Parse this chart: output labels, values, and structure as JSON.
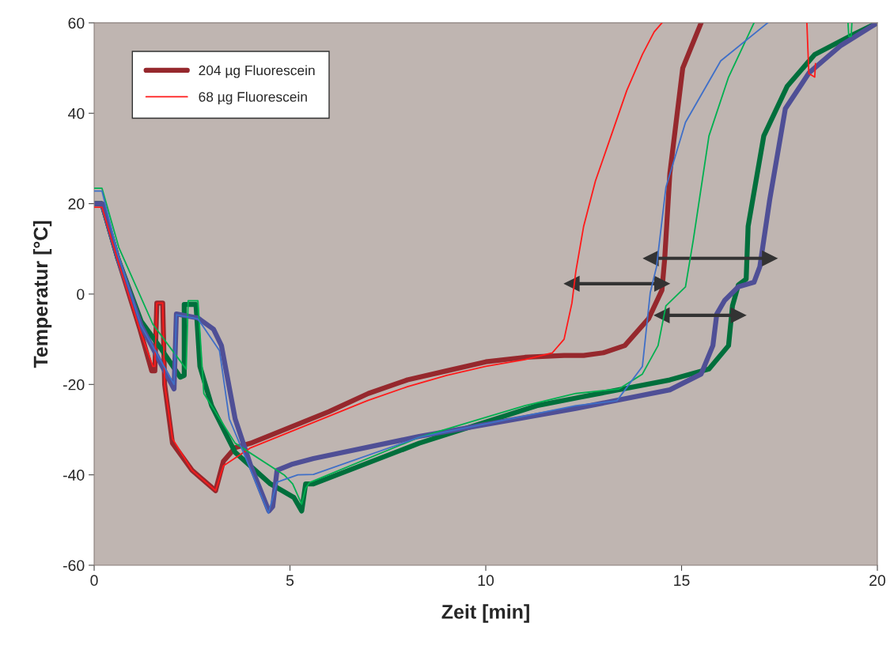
{
  "chart_data": {
    "type": "line",
    "xlabel": "Zeit [min]",
    "ylabel": "Temperatur [°C]",
    "xlim": [
      0,
      20
    ],
    "xticks": [
      0,
      5,
      10,
      15,
      20
    ],
    "ylim": [
      -60,
      60
    ],
    "yticks": [
      -60,
      -40,
      -20,
      0,
      20,
      40,
      60
    ],
    "grid": false,
    "legend": "top left",
    "marker": "none",
    "line_style": "solid",
    "series": [
      {
        "name": "204 µg Fluorescein",
        "color": "#96282d",
        "x": [
          0,
          0.2,
          0.6,
          1.17,
          1.47,
          1.55,
          1.6,
          1.75,
          1.8,
          2.0,
          2.5,
          3.1,
          3.3,
          3.6,
          4,
          5,
          6,
          7,
          8,
          9,
          10,
          11,
          12,
          12.5,
          13,
          13.55,
          14.16,
          14.5,
          14.57,
          14.7,
          15.03,
          15.5
        ],
        "values": [
          20,
          20,
          8,
          -7.8,
          -17,
          -17,
          -2,
          -2,
          -20,
          -33,
          -39,
          -43.5,
          -37,
          -34,
          -33,
          -29.5,
          -26,
          -22,
          -19,
          -17,
          -15,
          -14,
          -13.6,
          -13.6,
          -13,
          -11.4,
          -5.4,
          0.9,
          7.9,
          26.6,
          50,
          60
        ]
      },
      {
        "name": "68 µg Fluorescein",
        "color": "#ff1a1a",
        "x": [
          0,
          0.2,
          0.6,
          1.17,
          1.5,
          1.55,
          1.6,
          1.75,
          1.8,
          2.0,
          2.5,
          3.1,
          3.3,
          4,
          5,
          6,
          7,
          8,
          9,
          10,
          11,
          11.7,
          12.0,
          12.2,
          12.3,
          12.5,
          12.8,
          13.2,
          13.6,
          14.0,
          14.3,
          14.5,
          null,
          18.2,
          18.25,
          18.4,
          18.42
        ],
        "values": [
          19.2,
          19.2,
          7.5,
          -8,
          -16,
          -16,
          -2,
          -2,
          -20,
          -32,
          -39,
          -43.5,
          -38,
          -34,
          -30.5,
          -27,
          -23.5,
          -20.5,
          -18,
          -16,
          -14.5,
          -13,
          -10,
          -2,
          5,
          15,
          25,
          35,
          45,
          53,
          58,
          60,
          null,
          60,
          48.8,
          48,
          51
        ]
      },
      {
        "color": "#006f3c",
        "x": [
          0,
          0.2,
          0.6,
          1.2,
          1.7,
          2.2,
          2.3,
          2.3,
          2.6,
          2.7,
          3.0,
          3.6,
          4.5,
          5.1,
          5.3,
          5.4,
          5.6,
          8.3,
          11.3,
          12.3,
          14.7,
          15.7,
          16.2,
          16.3,
          16.45,
          16.65,
          16.7,
          17.1,
          17.7,
          18.4,
          19.4,
          20
        ],
        "values": [
          20,
          20,
          8,
          -6,
          -12,
          -18.4,
          -18,
          -2.3,
          -2.3,
          -16,
          -24.7,
          -35,
          -42,
          -45,
          -48,
          -42,
          -42,
          -33,
          -24.7,
          -23,
          -19,
          -16.6,
          -11.4,
          -2.6,
          2,
          3.3,
          15,
          35,
          46,
          53,
          57.5,
          60
        ]
      },
      {
        "color": "#00b050",
        "x": [
          0,
          0.2,
          0.63,
          1.5,
          2.35,
          2.4,
          2.65,
          2.8,
          3.6,
          4.85,
          5.07,
          5.3,
          5.4,
          5.5,
          8.3,
          11,
          12.3,
          13.4,
          14.0,
          14.4,
          14.6,
          15.1,
          15.3,
          15.7,
          16.2,
          16.85,
          null,
          19.25,
          19.27,
          19.33,
          19.35
        ],
        "values": [
          23.4,
          23.4,
          10.3,
          -6.7,
          -16.6,
          -1.5,
          -1.5,
          -22,
          -33,
          -40,
          -42,
          -46.5,
          -43,
          -41.7,
          -31.7,
          -24.7,
          -22,
          -21,
          -17.7,
          -11.4,
          -2.6,
          1.6,
          12,
          35,
          48,
          60,
          null,
          60,
          57,
          57,
          60
        ]
      },
      {
        "color": "#4f4f96",
        "x": [
          0,
          0.2,
          0.6,
          1.2,
          2.04,
          2.1,
          2.65,
          3.05,
          3.25,
          3.6,
          4.0,
          4.46,
          4.56,
          4.67,
          5.07,
          5.6,
          8.3,
          12.3,
          14.7,
          15.5,
          15.8,
          15.9,
          16.1,
          16.45,
          16.85,
          17.0,
          17.25,
          17.65,
          18.26,
          19.07,
          20
        ],
        "values": [
          20,
          20,
          8,
          -7,
          -21,
          -4.4,
          -5.3,
          -7.8,
          -11.4,
          -27.6,
          -38,
          -48,
          -47,
          -39,
          -37.6,
          -36.4,
          -31.5,
          -25.3,
          -21.2,
          -17.7,
          -11.4,
          -4.4,
          -1.4,
          1.6,
          2.6,
          6.1,
          20.8,
          41,
          49,
          55,
          60
        ]
      },
      {
        "color": "#3f6fc8",
        "x": [
          0,
          0.2,
          0.6,
          1.2,
          2.04,
          2.1,
          2.65,
          3.2,
          3.45,
          4.0,
          4.45,
          4.67,
          5.2,
          5.6,
          8.3,
          12.3,
          13.35,
          14.0,
          14.2,
          14.36,
          14.6,
          15.1,
          16.0,
          17.2
        ],
        "values": [
          22.8,
          22.8,
          9,
          -7,
          -20,
          -4.6,
          -5.5,
          -12.5,
          -27.6,
          -39,
          -48.5,
          -41.6,
          -40,
          -39.9,
          -31.7,
          -24.7,
          -23.6,
          -16,
          0.3,
          6,
          23.6,
          38,
          51.6,
          60
        ]
      },
      {
        "color": "#333333",
        "marker": "triangle",
        "x": [
          12.2,
          14.5
        ],
        "values": [
          2.3,
          2.3
        ]
      },
      {
        "color": "#333333",
        "marker": "triangle",
        "x": [
          14.22,
          17.25
        ],
        "values": [
          7.9,
          7.9
        ]
      },
      {
        "color": "#333333",
        "marker": "triangle",
        "x": [
          14.5,
          16.45
        ],
        "values": [
          -4.7,
          -4.7
        ]
      }
    ]
  }
}
